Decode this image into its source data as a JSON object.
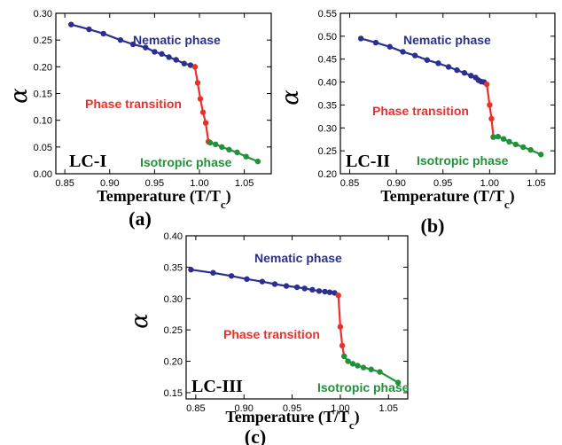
{
  "colors": {
    "nematic": "#2b2f8f",
    "transition": "#e8312b",
    "isotropic": "#21913a"
  },
  "chart_data": [
    {
      "type": "line",
      "panel_label": "(a)",
      "sample": "LC-I",
      "xlabel": "Temperature (T/T",
      "xlabel_sub": "c",
      "xlabel_close": ")",
      "ylabel": "α",
      "xlim": [
        0.84,
        1.08
      ],
      "ylim": [
        0.0,
        0.3
      ],
      "xticks": [
        "0.85",
        "0.90",
        "0.95",
        "1.00",
        "1.05"
      ],
      "yticks": [
        "0.00",
        "0.05",
        "0.10",
        "0.15",
        "0.20",
        "0.25",
        "0.30"
      ],
      "series": [
        {
          "name": "Nematic phase",
          "color_key": "nematic",
          "x": [
            0.857,
            0.877,
            0.893,
            0.912,
            0.926,
            0.94,
            0.95,
            0.958,
            0.966,
            0.974,
            0.983,
            0.99
          ],
          "y": [
            0.279,
            0.27,
            0.262,
            0.25,
            0.242,
            0.236,
            0.228,
            0.224,
            0.218,
            0.213,
            0.206,
            0.203
          ]
        },
        {
          "name": "Phase transition",
          "color_key": "transition",
          "x": [
            0.995,
            0.998,
            1.001,
            1.004,
            1.007,
            1.01
          ],
          "y": [
            0.2,
            0.17,
            0.14,
            0.115,
            0.095,
            0.06
          ]
        },
        {
          "name": "Isotropic phase",
          "color_key": "isotropic",
          "x": [
            1.012,
            1.018,
            1.025,
            1.033,
            1.042,
            1.052,
            1.065
          ],
          "y": [
            0.058,
            0.055,
            0.05,
            0.045,
            0.04,
            0.032,
            0.023
          ]
        }
      ]
    },
    {
      "type": "line",
      "panel_label": "(b)",
      "sample": "LC-II",
      "xlabel": "Temperature (T/T",
      "xlabel_sub": "c",
      "xlabel_close": ")",
      "ylabel": "α",
      "xlim": [
        0.84,
        1.07
      ],
      "ylim": [
        0.2,
        0.55
      ],
      "xticks": [
        "0.85",
        "0.90",
        "0.95",
        "1.00",
        "1.05"
      ],
      "yticks": [
        "0.20",
        "0.25",
        "0.30",
        "0.35",
        "0.40",
        "0.45",
        "0.50",
        "0.55"
      ],
      "series": [
        {
          "name": "Nematic phase",
          "color_key": "nematic",
          "x": [
            0.862,
            0.878,
            0.893,
            0.907,
            0.92,
            0.933,
            0.945,
            0.956,
            0.965,
            0.973,
            0.98,
            0.985,
            0.988,
            0.991,
            0.994
          ],
          "y": [
            0.495,
            0.486,
            0.477,
            0.466,
            0.458,
            0.448,
            0.441,
            0.433,
            0.426,
            0.42,
            0.414,
            0.41,
            0.404,
            0.401,
            0.4
          ]
        },
        {
          "name": "Phase transition",
          "color_key": "transition",
          "x": [
            0.997,
            1.0,
            1.002,
            1.004
          ],
          "y": [
            0.395,
            0.35,
            0.32,
            0.28
          ]
        },
        {
          "name": "Isotropic phase",
          "color_key": "isotropic",
          "x": [
            1.004,
            1.009,
            1.015,
            1.021,
            1.028,
            1.036,
            1.044,
            1.055
          ],
          "y": [
            0.28,
            0.281,
            0.276,
            0.27,
            0.264,
            0.258,
            0.252,
            0.242
          ]
        }
      ]
    },
    {
      "type": "line",
      "panel_label": "(c)",
      "sample": "LC-III",
      "xlabel": "Temperature (T/T",
      "xlabel_sub": "c",
      "xlabel_close": ")",
      "ylabel": "α",
      "xlim": [
        0.84,
        1.07
      ],
      "ylim": [
        0.14,
        0.4
      ],
      "xticks": [
        "0.85",
        "0.90",
        "0.95",
        "1.00",
        "1.05"
      ],
      "yticks": [
        "0.15",
        "0.20",
        "0.25",
        "0.30",
        "0.35",
        "0.40"
      ],
      "series": [
        {
          "name": "Nematic phase",
          "color_key": "nematic",
          "x": [
            0.845,
            0.868,
            0.887,
            0.903,
            0.919,
            0.932,
            0.944,
            0.955,
            0.963,
            0.971,
            0.978,
            0.984,
            0.989,
            0.994
          ],
          "y": [
            0.346,
            0.341,
            0.336,
            0.331,
            0.327,
            0.323,
            0.32,
            0.318,
            0.316,
            0.314,
            0.312,
            0.311,
            0.31,
            0.309
          ]
        },
        {
          "name": "Phase transition",
          "color_key": "transition",
          "x": [
            0.998,
            1.0,
            1.002,
            1.004
          ],
          "y": [
            0.305,
            0.255,
            0.225,
            0.208
          ]
        },
        {
          "name": "Isotropic phase",
          "color_key": "isotropic",
          "x": [
            1.004,
            1.008,
            1.013,
            1.018,
            1.024,
            1.032,
            1.041,
            1.06
          ],
          "y": [
            0.208,
            0.2,
            0.196,
            0.193,
            0.19,
            0.187,
            0.183,
            0.166
          ]
        }
      ]
    }
  ]
}
